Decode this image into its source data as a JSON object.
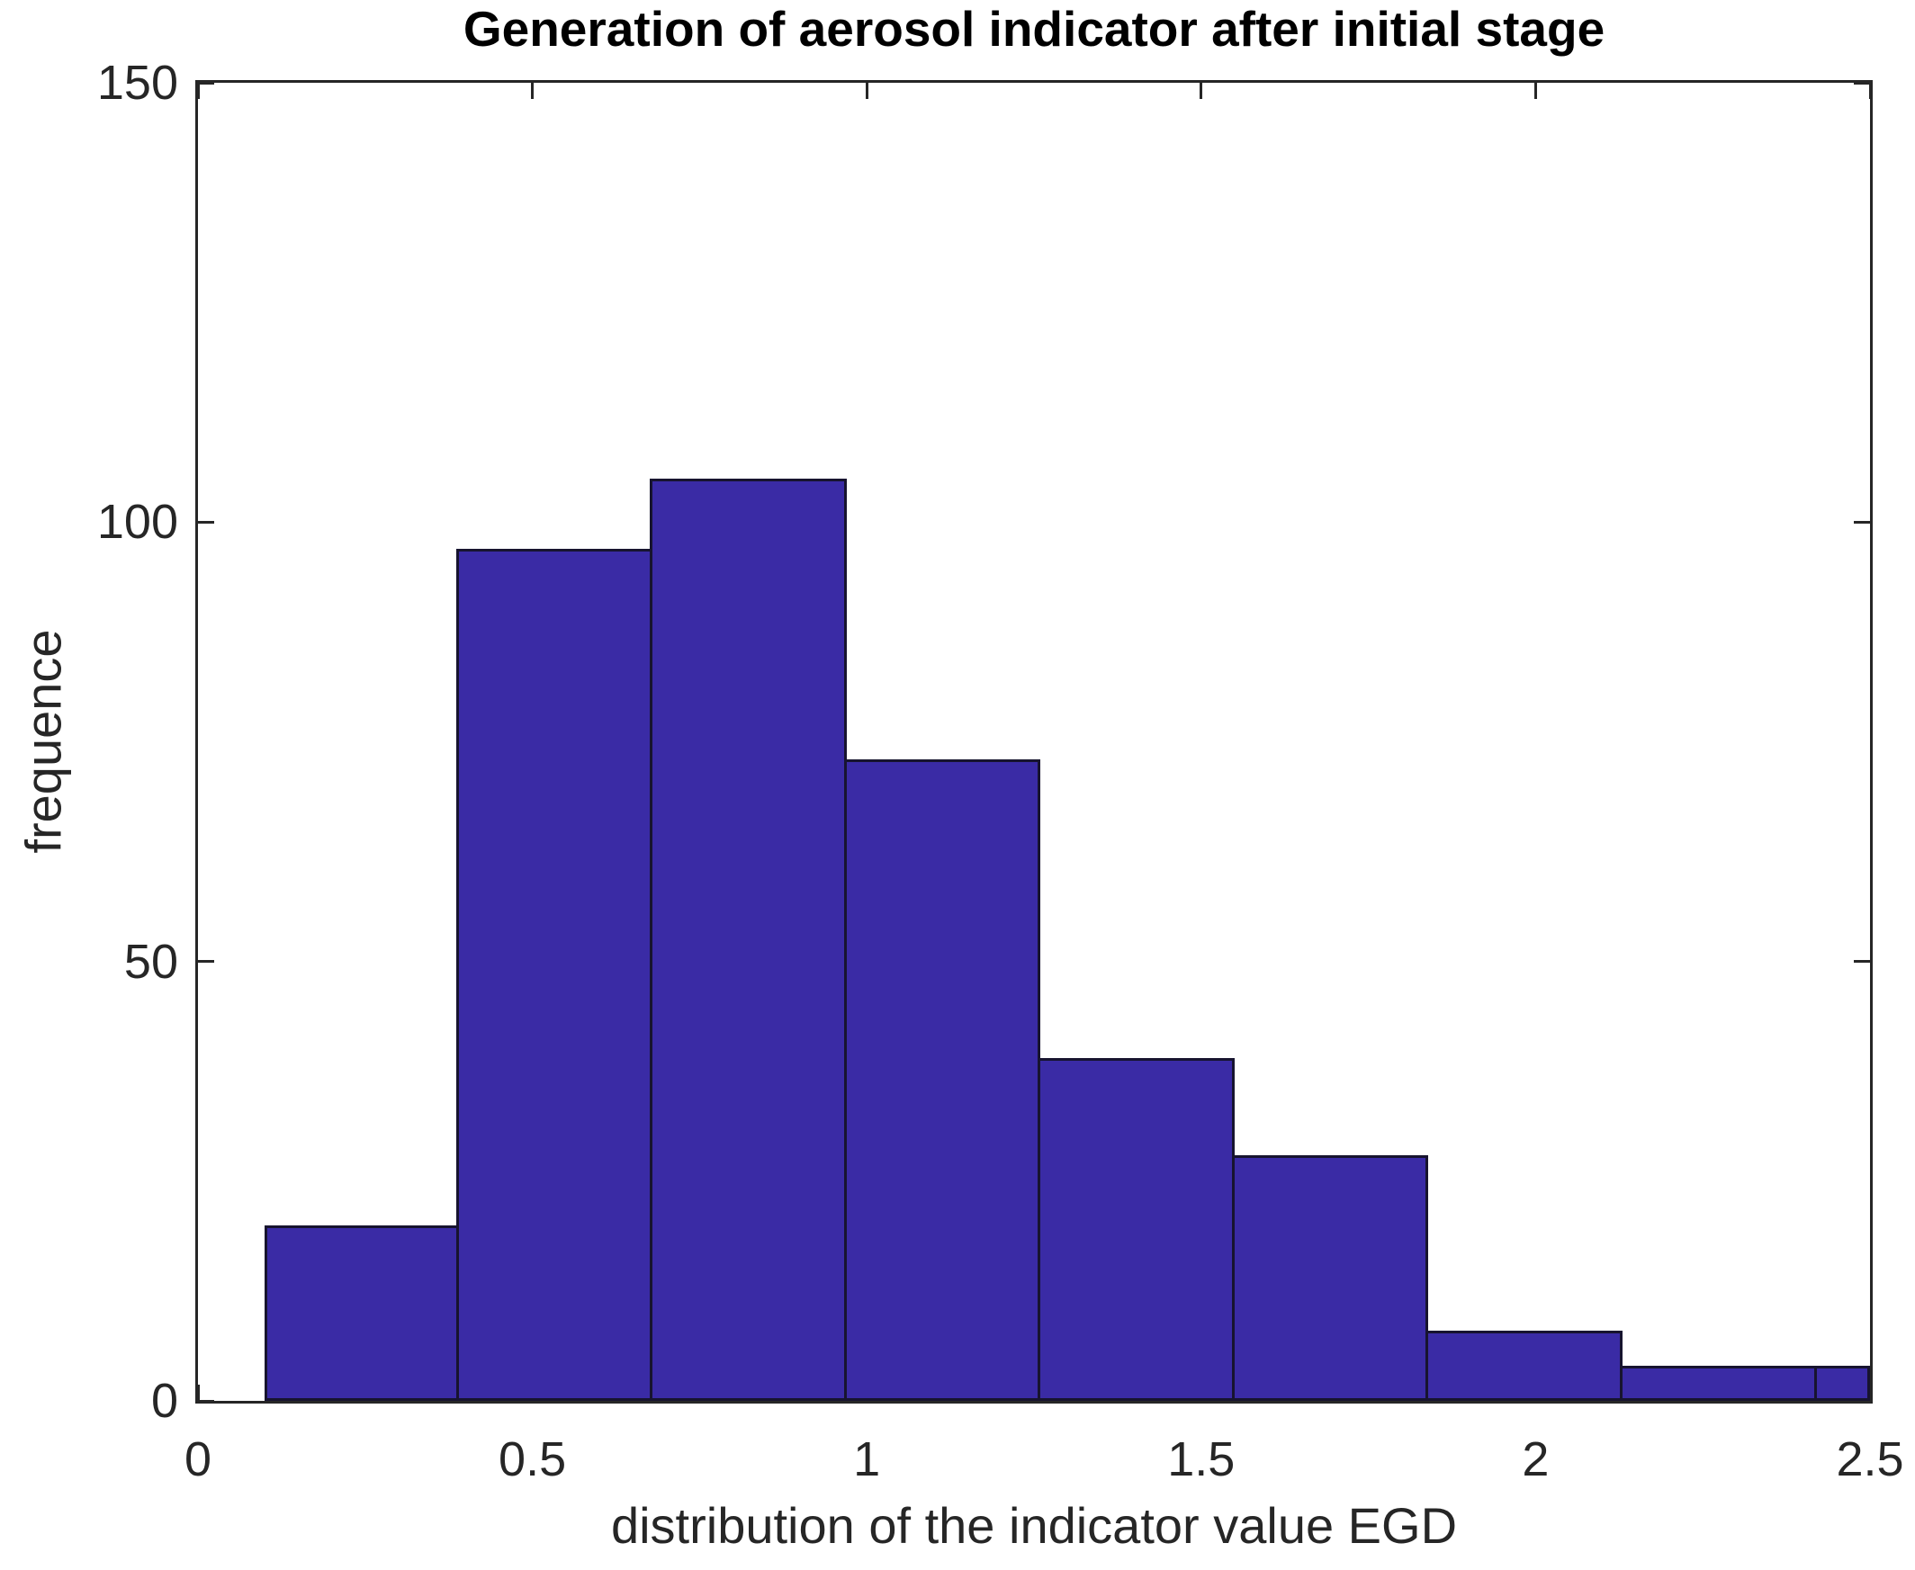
{
  "chart_data": {
    "type": "bar",
    "title": "Generation of aerosol indicator after initial stage",
    "xlabel": "distribution of the indicator value EGD",
    "ylabel": "frequence",
    "bin_edges": [
      0.1,
      0.39,
      0.68,
      0.97,
      1.26,
      1.55,
      1.84,
      2.13,
      2.42,
      2.71
    ],
    "counts": [
      20,
      97,
      105,
      73,
      39,
      28,
      8,
      4,
      4
    ],
    "xlim": [
      0,
      2.5
    ],
    "ylim": [
      0,
      150
    ],
    "x_ticks": [
      0,
      0.5,
      1,
      1.5,
      2,
      2.5
    ],
    "x_tick_labels": [
      "0",
      "0.5",
      "1",
      "1.5",
      "2",
      "2.5"
    ],
    "y_ticks": [
      0,
      50,
      100,
      150
    ],
    "y_tick_labels": [
      "0",
      "50",
      "100",
      "150"
    ],
    "grid": false,
    "legend_position": "none",
    "bar_face_color": "#3a2ba5",
    "bar_edge_color": "#17142f",
    "axis_color": "#262626",
    "background_color": "#ffffff",
    "tick_direction": "in",
    "box": true
  }
}
